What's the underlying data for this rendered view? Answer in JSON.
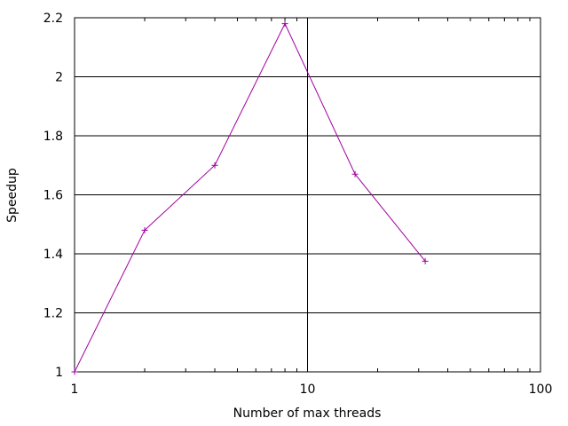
{
  "chart_data": {
    "type": "line",
    "title": "",
    "xlabel": "Number of max threads",
    "ylabel": "Speedup",
    "x_scale": "log",
    "xlim": [
      1,
      100
    ],
    "ylim": [
      1,
      2.2
    ],
    "x_ticks": [
      1,
      10,
      100
    ],
    "x_tick_labels": [
      "1",
      "10",
      "100"
    ],
    "y_ticks": [
      1,
      1.2,
      1.4,
      1.6,
      1.8,
      2,
      2.2
    ],
    "y_tick_labels": [
      "1",
      "1.2",
      "1.4",
      "1.6",
      "1.8",
      "2",
      "2.2"
    ],
    "grid": true,
    "legend": "none",
    "series": [
      {
        "color": "#a000a0",
        "marker": "plus",
        "x": [
          1,
          2,
          4,
          8,
          16,
          32
        ],
        "y": [
          1.0,
          1.48,
          1.7,
          2.18,
          1.67,
          1.375
        ]
      }
    ]
  }
}
